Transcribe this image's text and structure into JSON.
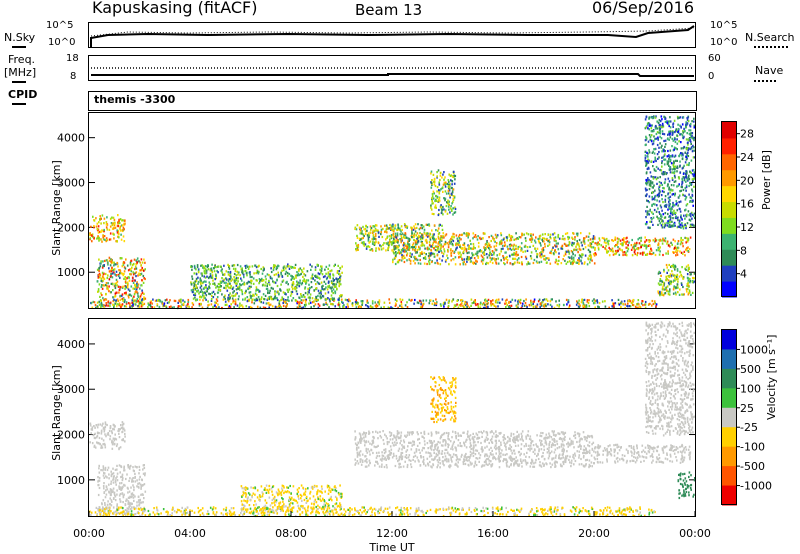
{
  "header": {
    "station": "Kapuskasing (fitACF)",
    "beam": "Beam 13",
    "date": "06/Sep/2016"
  },
  "sky_panel": {
    "left_label": "N.Sky",
    "left_ticks": [
      "10^5",
      "10^0"
    ],
    "right_ticks": [
      "10^5",
      "10^0"
    ],
    "right_label": "N.Search"
  },
  "freq_panel": {
    "left_label_line1": "Freq.",
    "left_label_line2": "[MHz]",
    "left_ticks": [
      "18",
      "8"
    ],
    "right_ticks": [
      "60",
      "0"
    ],
    "right_label": "Nave"
  },
  "cpid": {
    "label": "CPID",
    "program": "themis -3300"
  },
  "colors": {
    "scatter_palette": [
      "#0000ff",
      "#1f3fbf",
      "#2e8b57",
      "#3cb371",
      "#7fdc1f",
      "#c8dc00",
      "#ffd700",
      "#ff9900",
      "#ff6600",
      "#ff2000",
      "#e00000"
    ],
    "velocity_palette": [
      "#0000dd",
      "#1e6fb0",
      "#2e8b57",
      "#3cc23c",
      "#c8c8c8",
      "#c8c8c8",
      "#ffd000",
      "#ff9900",
      "#ff5500",
      "#ee0000"
    ],
    "ground_scatter": "#c8c8c4"
  },
  "chart_data": [
    {
      "type": "heatmap",
      "name": "power",
      "ylabel": "Slant Range [km]",
      "yticks": [
        "1000",
        "2000",
        "3000",
        "4000"
      ],
      "ylim": [
        180,
        4550
      ],
      "xlim": [
        0,
        24
      ],
      "colorbar_label": "Power [dB]",
      "colorbar_ticks": [
        "4",
        "8",
        "12",
        "16",
        "20",
        "24",
        "28"
      ],
      "colorbar_range": [
        0,
        30
      ],
      "regions": [
        {
          "t0": 0.0,
          "t1": 1.4,
          "r0": 1700,
          "r1": 2300,
          "v": [
            10,
            26
          ]
        },
        {
          "t0": 0.3,
          "t1": 2.2,
          "r0": 250,
          "r1": 1350,
          "v": [
            4,
            28
          ]
        },
        {
          "t0": 0.0,
          "t1": 22.5,
          "r0": 180,
          "r1": 420,
          "v": [
            2,
            26
          ]
        },
        {
          "t0": 4.0,
          "t1": 10.0,
          "r0": 400,
          "r1": 1200,
          "v": [
            4,
            16
          ]
        },
        {
          "t0": 10.5,
          "t1": 14.0,
          "r0": 1500,
          "r1": 2100,
          "v": [
            4,
            22
          ]
        },
        {
          "t0": 12.0,
          "t1": 20.0,
          "r0": 1200,
          "r1": 1900,
          "v": [
            4,
            24
          ]
        },
        {
          "t0": 20.0,
          "t1": 23.8,
          "r0": 1400,
          "r1": 1800,
          "v": [
            8,
            28
          ]
        },
        {
          "t0": 13.5,
          "t1": 14.5,
          "r0": 2300,
          "r1": 3300,
          "v": [
            4,
            20
          ]
        },
        {
          "t0": 22.0,
          "t1": 24.0,
          "r0": 2000,
          "r1": 4500,
          "v": [
            2,
            12
          ]
        },
        {
          "t0": 22.5,
          "t1": 24.0,
          "r0": 500,
          "r1": 1200,
          "v": [
            4,
            20
          ]
        }
      ]
    },
    {
      "type": "heatmap",
      "name": "velocity",
      "ylabel": "Slant Range [km]",
      "yticks": [
        "1000",
        "2000",
        "3000",
        "4000"
      ],
      "ylim": [
        180,
        4550
      ],
      "xlim": [
        0,
        24
      ],
      "xlabel": "Time UT",
      "xticks": [
        "00:00",
        "04:00",
        "08:00",
        "12:00",
        "16:00",
        "20:00",
        "00:00"
      ],
      "colorbar_label": "Velocity [m s⁻¹]",
      "colorbar_ticks": [
        "1000",
        "500",
        "100",
        "25",
        "-25",
        "-100",
        "-500",
        "-1000"
      ],
      "colorbar_range": [
        -1000,
        1000
      ],
      "regions": [
        {
          "t0": 0.0,
          "t1": 1.4,
          "r0": 1700,
          "r1": 2300,
          "v": [
            -25,
            25
          ]
        },
        {
          "t0": 0.3,
          "t1": 2.2,
          "r0": 250,
          "r1": 1350,
          "v": [
            -25,
            25
          ]
        },
        {
          "t0": 0.0,
          "t1": 22.5,
          "r0": 180,
          "r1": 420,
          "v": [
            -400,
            100
          ]
        },
        {
          "t0": 6.0,
          "t1": 10.0,
          "r0": 300,
          "r1": 900,
          "v": [
            -500,
            100
          ]
        },
        {
          "t0": 10.5,
          "t1": 20.0,
          "r0": 1300,
          "r1": 2100,
          "v": [
            -25,
            25
          ]
        },
        {
          "t0": 13.5,
          "t1": 14.5,
          "r0": 2300,
          "r1": 3300,
          "v": [
            -800,
            -100
          ]
        },
        {
          "t0": 20.0,
          "t1": 23.8,
          "r0": 1400,
          "r1": 1800,
          "v": [
            -25,
            25
          ]
        },
        {
          "t0": 22.0,
          "t1": 24.0,
          "r0": 2000,
          "r1": 4500,
          "v": [
            -25,
            25
          ]
        },
        {
          "t0": 23.3,
          "t1": 24.0,
          "r0": 600,
          "r1": 1200,
          "v": [
            100,
            400
          ]
        }
      ]
    }
  ]
}
